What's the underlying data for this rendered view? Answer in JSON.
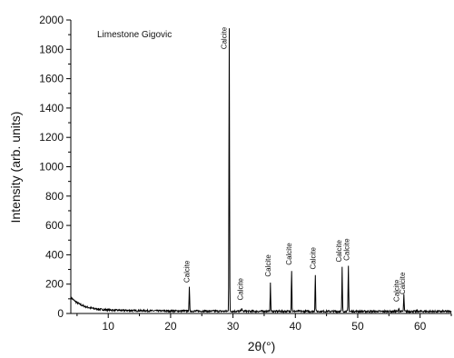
{
  "chart_data": {
    "type": "line",
    "title": "",
    "inset_label": "Limestone Gigovic",
    "xlabel": "2θ(°)",
    "ylabel": "Intensity (arb. units)",
    "xlim": [
      4,
      65
    ],
    "ylim": [
      0,
      2000
    ],
    "x_ticks": [
      10,
      20,
      30,
      40,
      50,
      60
    ],
    "y_ticks": [
      0,
      200,
      400,
      600,
      800,
      1000,
      1200,
      1400,
      1600,
      1800,
      2000
    ],
    "grid": false,
    "line_color": "#000000",
    "peaks": [
      {
        "x": 23.0,
        "y": 160
      },
      {
        "x": 29.4,
        "y": 1930
      },
      {
        "x": 31.4,
        "y": 25
      },
      {
        "x": 36.0,
        "y": 190
      },
      {
        "x": 39.4,
        "y": 280
      },
      {
        "x": 43.2,
        "y": 250
      },
      {
        "x": 47.5,
        "y": 300
      },
      {
        "x": 48.5,
        "y": 310
      },
      {
        "x": 56.6,
        "y": 25
      },
      {
        "x": 57.4,
        "y": 120
      }
    ],
    "annotations": [
      {
        "text": "Calcite",
        "x": 23.0,
        "y": 210
      },
      {
        "text": "Calcite",
        "x": 29.0,
        "y": 1800
      },
      {
        "text": "Calcite",
        "x": 31.6,
        "y": 90
      },
      {
        "text": "Calcite",
        "x": 36.0,
        "y": 250
      },
      {
        "text": "Calcite",
        "x": 39.4,
        "y": 330
      },
      {
        "text": "Calcite",
        "x": 43.2,
        "y": 300
      },
      {
        "text": "Calcite",
        "x": 47.4,
        "y": 350
      },
      {
        "text": "Calcite",
        "x": 48.6,
        "y": 360
      },
      {
        "text": "Calcite",
        "x": 56.6,
        "y": 80
      },
      {
        "text": "Calcite",
        "x": 57.6,
        "y": 130
      }
    ]
  }
}
